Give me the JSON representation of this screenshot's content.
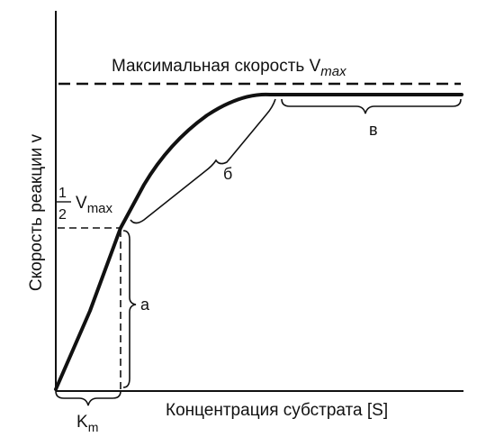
{
  "diagram": {
    "title": {
      "text": "Максимальная скорость V",
      "subscript": "max"
    },
    "y_axis_label": "Скорость реакции v",
    "x_axis_label": "Концентрация субстрата [S]",
    "half_vmax_label": {
      "numerator": "1",
      "denominator": "2",
      "symbol": "V",
      "subscript": "max"
    },
    "km_label": {
      "symbol": "K",
      "subscript": "m"
    },
    "region_labels": {
      "a": "а",
      "b": "б",
      "v": "в"
    }
  }
}
